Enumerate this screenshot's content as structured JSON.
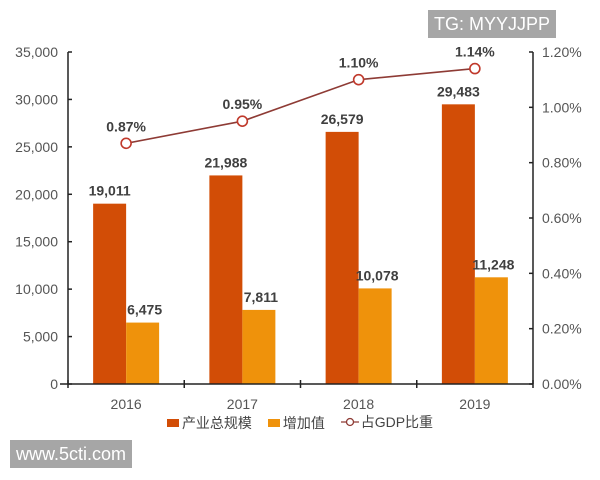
{
  "watermarks": {
    "top_right": "TG: MYYJJPP",
    "bottom_left": "www.5cti.com"
  },
  "colors": {
    "total_scale": "#d24d06",
    "value_added": "#ef920b",
    "gdp_share_line": "#8e3b35",
    "axis": "#222222"
  },
  "legend": {
    "total_scale": "产业总规模",
    "value_added": "增加值",
    "gdp_share": "占GDP比重"
  },
  "chart_data": {
    "type": "bar",
    "categories": [
      "2016",
      "2017",
      "2018",
      "2019"
    ],
    "series": [
      {
        "name": "产业总规模",
        "type": "bar",
        "axis": "left",
        "values": [
          19011,
          21988,
          26579,
          29483
        ],
        "labels": [
          "19,011",
          "21,988",
          "26,579",
          "29,483"
        ]
      },
      {
        "name": "增加值",
        "type": "bar",
        "axis": "left",
        "values": [
          6475,
          7811,
          10078,
          11248
        ],
        "labels": [
          "6,475",
          "7,811",
          "10,078",
          "11,248"
        ]
      },
      {
        "name": "占GDP比重",
        "type": "line",
        "axis": "right",
        "values": [
          0.87,
          0.95,
          1.1,
          1.14
        ],
        "labels": [
          "0.87%",
          "0.95%",
          "1.10%",
          "1.14%"
        ]
      }
    ],
    "title": "",
    "xlabel": "",
    "ylabel": "",
    "ylim": [
      0,
      35000
    ],
    "y2lim": [
      0,
      1.2
    ],
    "left_ticks": [
      "0",
      "5,000",
      "10,000",
      "15,000",
      "20,000",
      "25,000",
      "30,000",
      "35,000"
    ],
    "right_ticks": [
      "0.00%",
      "0.20%",
      "0.40%",
      "0.60%",
      "0.80%",
      "1.00%",
      "1.20%"
    ],
    "grid": false,
    "legend_position": "bottom"
  }
}
